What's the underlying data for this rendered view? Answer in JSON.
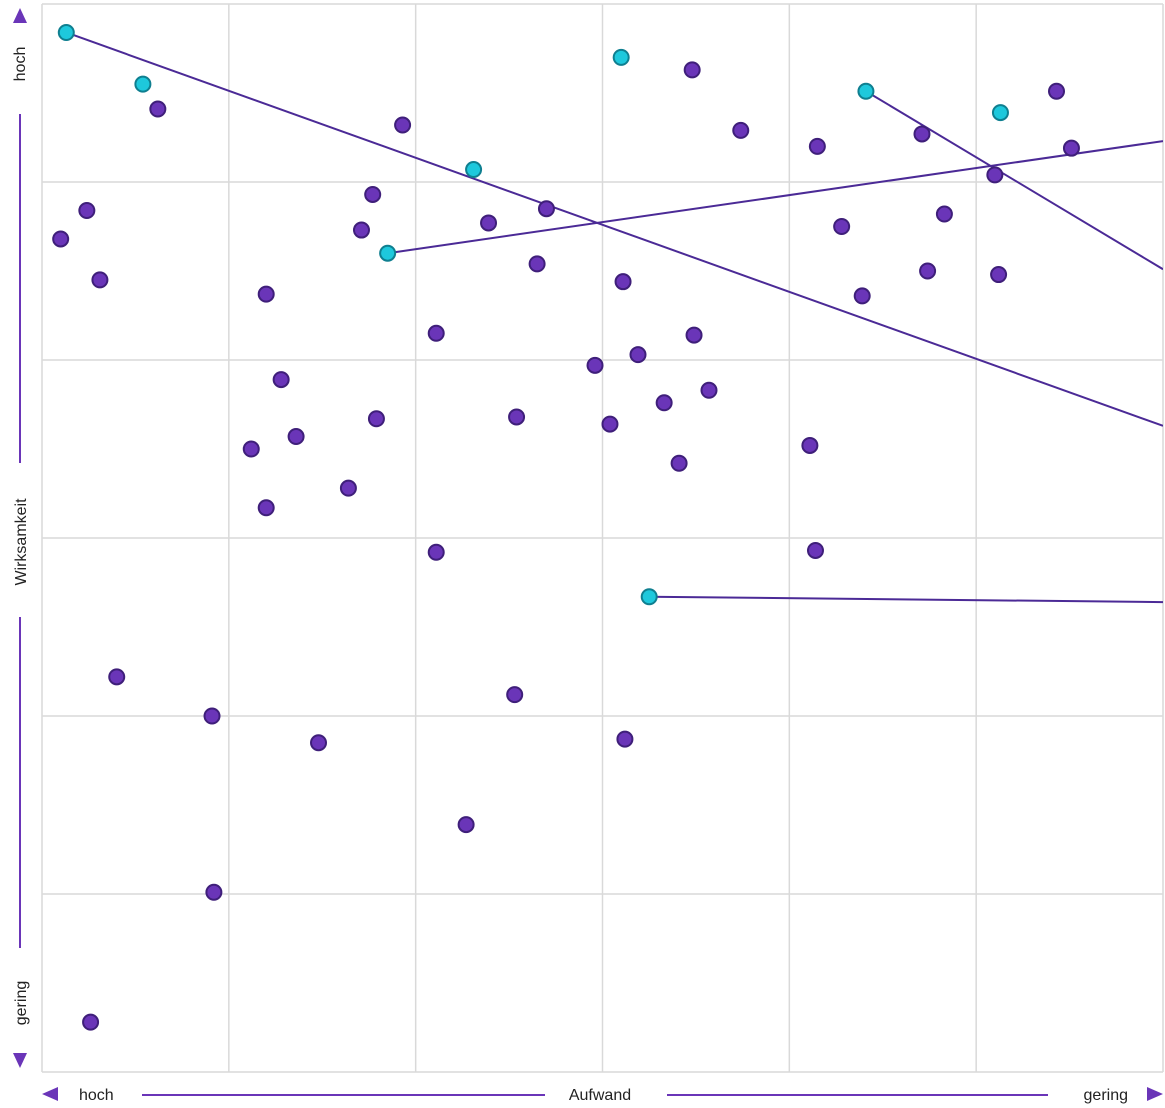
{
  "chart_data": {
    "type": "scatter",
    "xlabel": "Aufwand",
    "ylabel": "Wirksamkeit",
    "x_axis": {
      "left_label": "hoch",
      "right_label": "gering"
    },
    "y_axis": {
      "top_label": "hoch",
      "bottom_label": "gering"
    },
    "xlim": [
      0,
      6
    ],
    "ylim": [
      0,
      6
    ],
    "grid": true,
    "colors": {
      "point": "#6a35b8",
      "point_stroke": "#3f1f7a",
      "highlight": "#1ec8dc",
      "highlight_stroke": "#0f7f90",
      "line": "#4b2a96",
      "axis": "#6a35b8",
      "grid": "#d9d9d9"
    },
    "points": [
      {
        "x": 0.13,
        "y": 5.84,
        "highlight": true
      },
      {
        "x": 0.54,
        "y": 5.55,
        "highlight": true
      },
      {
        "x": 0.62,
        "y": 5.41,
        "highlight": false
      },
      {
        "x": 0.24,
        "y": 4.84,
        "highlight": false
      },
      {
        "x": 0.1,
        "y": 4.68,
        "highlight": false
      },
      {
        "x": 0.31,
        "y": 4.45,
        "highlight": false
      },
      {
        "x": 1.93,
        "y": 5.32,
        "highlight": false
      },
      {
        "x": 1.77,
        "y": 4.93,
        "highlight": false
      },
      {
        "x": 1.71,
        "y": 4.73,
        "highlight": false
      },
      {
        "x": 1.85,
        "y": 4.6,
        "highlight": true
      },
      {
        "x": 2.31,
        "y": 5.07,
        "highlight": true
      },
      {
        "x": 2.39,
        "y": 4.77,
        "highlight": false
      },
      {
        "x": 2.7,
        "y": 4.85,
        "highlight": false
      },
      {
        "x": 2.65,
        "y": 4.54,
        "highlight": false
      },
      {
        "x": 1.2,
        "y": 4.37,
        "highlight": false
      },
      {
        "x": 2.11,
        "y": 4.15,
        "highlight": false
      },
      {
        "x": 1.28,
        "y": 3.89,
        "highlight": false
      },
      {
        "x": 1.79,
        "y": 3.67,
        "highlight": false
      },
      {
        "x": 1.36,
        "y": 3.57,
        "highlight": false
      },
      {
        "x": 1.12,
        "y": 3.5,
        "highlight": false
      },
      {
        "x": 1.64,
        "y": 3.28,
        "highlight": false
      },
      {
        "x": 1.2,
        "y": 3.17,
        "highlight": false
      },
      {
        "x": 2.11,
        "y": 2.92,
        "highlight": false
      },
      {
        "x": 2.54,
        "y": 3.68,
        "highlight": false
      },
      {
        "x": 3.1,
        "y": 5.7,
        "highlight": true
      },
      {
        "x": 3.48,
        "y": 5.63,
        "highlight": false
      },
      {
        "x": 3.74,
        "y": 5.29,
        "highlight": false
      },
      {
        "x": 3.11,
        "y": 4.44,
        "highlight": false
      },
      {
        "x": 3.19,
        "y": 4.03,
        "highlight": false
      },
      {
        "x": 3.49,
        "y": 4.14,
        "highlight": false
      },
      {
        "x": 2.96,
        "y": 3.97,
        "highlight": false
      },
      {
        "x": 3.33,
        "y": 3.76,
        "highlight": false
      },
      {
        "x": 3.57,
        "y": 3.83,
        "highlight": false
      },
      {
        "x": 3.04,
        "y": 3.64,
        "highlight": false
      },
      {
        "x": 3.41,
        "y": 3.42,
        "highlight": false
      },
      {
        "x": 3.25,
        "y": 2.67,
        "highlight": true
      },
      {
        "x": 4.15,
        "y": 5.2,
        "highlight": false
      },
      {
        "x": 4.41,
        "y": 5.51,
        "highlight": true
      },
      {
        "x": 4.28,
        "y": 4.75,
        "highlight": false
      },
      {
        "x": 4.39,
        "y": 4.36,
        "highlight": false
      },
      {
        "x": 4.11,
        "y": 3.52,
        "highlight": false
      },
      {
        "x": 4.14,
        "y": 2.93,
        "highlight": false
      },
      {
        "x": 4.71,
        "y": 5.27,
        "highlight": false
      },
      {
        "x": 4.83,
        "y": 4.82,
        "highlight": false
      },
      {
        "x": 4.74,
        "y": 4.5,
        "highlight": false
      },
      {
        "x": 5.13,
        "y": 5.39,
        "highlight": true
      },
      {
        "x": 5.43,
        "y": 5.51,
        "highlight": false
      },
      {
        "x": 5.51,
        "y": 5.19,
        "highlight": false
      },
      {
        "x": 5.1,
        "y": 5.04,
        "highlight": false
      },
      {
        "x": 5.12,
        "y": 4.48,
        "highlight": false
      },
      {
        "x": 0.4,
        "y": 2.22,
        "highlight": false
      },
      {
        "x": 0.91,
        "y": 2.0,
        "highlight": false
      },
      {
        "x": 1.48,
        "y": 1.85,
        "highlight": false
      },
      {
        "x": 2.53,
        "y": 2.12,
        "highlight": false
      },
      {
        "x": 3.12,
        "y": 1.87,
        "highlight": false
      },
      {
        "x": 2.27,
        "y": 1.39,
        "highlight": false
      },
      {
        "x": 0.92,
        "y": 1.01,
        "highlight": false
      },
      {
        "x": 0.26,
        "y": 0.28,
        "highlight": false
      }
    ],
    "lines": [
      {
        "x1": 0.13,
        "y1": 5.84,
        "x2": 6.0,
        "y2": 3.63
      },
      {
        "x1": 1.85,
        "y1": 4.6,
        "x2": 6.0,
        "y2": 5.23
      },
      {
        "x1": 4.41,
        "y1": 5.51,
        "x2": 6.0,
        "y2": 4.51
      },
      {
        "x1": 3.25,
        "y1": 2.67,
        "x2": 6.0,
        "y2": 2.64
      }
    ]
  }
}
